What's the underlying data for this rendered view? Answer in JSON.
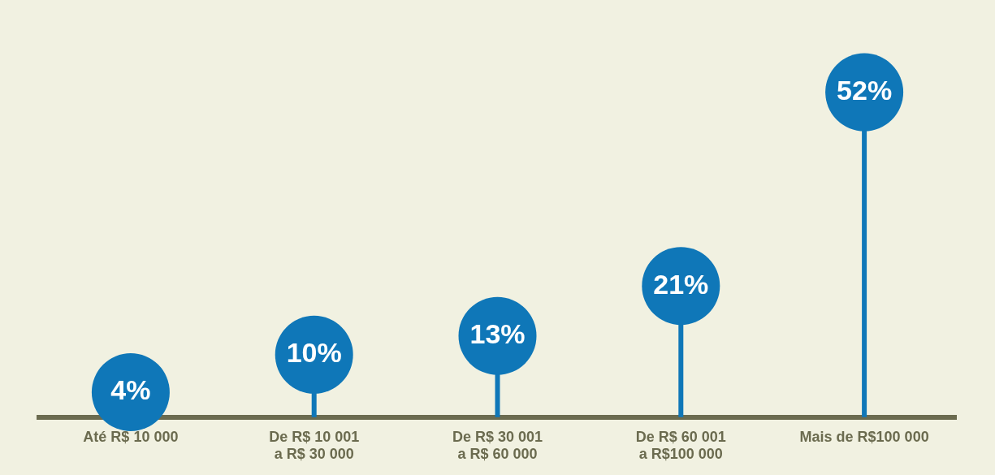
{
  "chart_data": {
    "type": "lollipop",
    "categories": [
      "Até R$ 10 000",
      "De R$ 10 001\na R$ 30 000",
      "De R$ 30 001\na R$ 60 000",
      "De R$ 60 001\na R$100 000",
      "Mais de R$100 000"
    ],
    "values": [
      4,
      10,
      13,
      21,
      52
    ],
    "value_labels": [
      "4%",
      "10%",
      "13%",
      "21%",
      "52%"
    ],
    "color": "#0f77b8"
  }
}
